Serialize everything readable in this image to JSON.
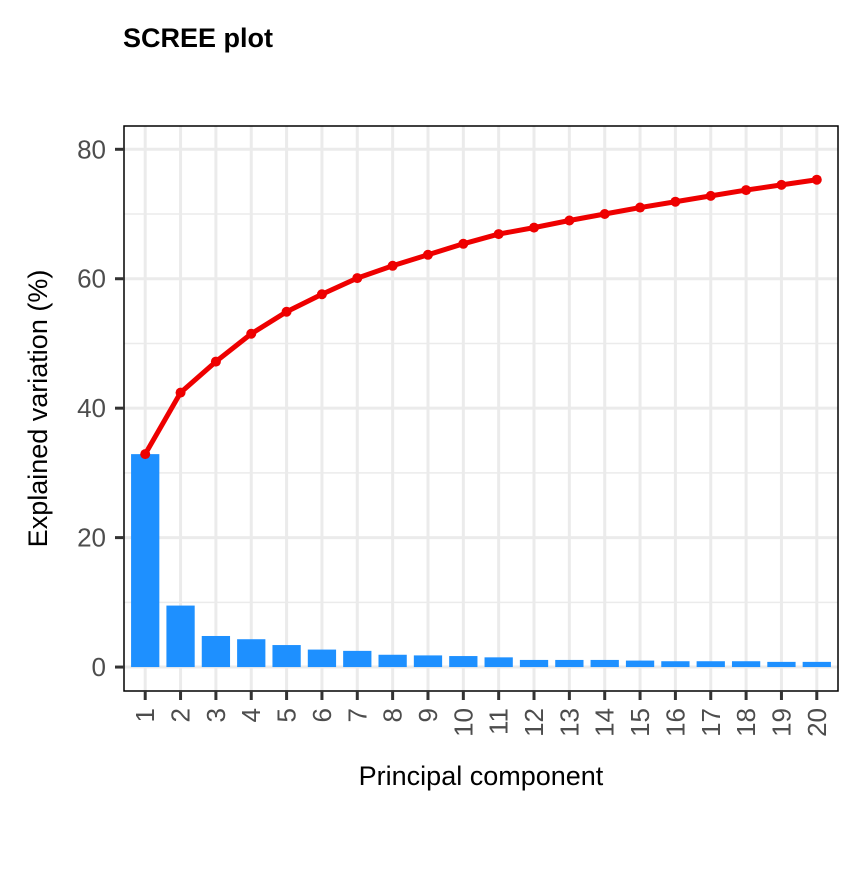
{
  "chart_data": {
    "type": "bar",
    "title": "SCREE plot",
    "xlabel": "Principal component",
    "ylabel": "Explained variation (%)",
    "categories": [
      "1",
      "2",
      "3",
      "4",
      "5",
      "6",
      "7",
      "8",
      "9",
      "10",
      "11",
      "12",
      "13",
      "14",
      "15",
      "16",
      "17",
      "18",
      "19",
      "20"
    ],
    "ylim": [
      -3.7,
      83.6
    ],
    "yticks": [
      0,
      20,
      40,
      60,
      80
    ],
    "grid": true,
    "series": [
      {
        "type": "bar",
        "values": [
          32.9,
          9.5,
          4.8,
          4.3,
          3.4,
          2.7,
          2.5,
          1.9,
          1.8,
          1.7,
          1.5,
          1.1,
          1.1,
          1.1,
          1.0,
          0.9,
          0.9,
          0.9,
          0.8,
          0.8
        ],
        "color": "#1E90FF"
      },
      {
        "type": "line",
        "values": [
          32.9,
          42.4,
          47.2,
          51.5,
          54.9,
          57.6,
          60.1,
          62.0,
          63.7,
          65.4,
          66.9,
          67.9,
          69.0,
          70.0,
          71.0,
          71.9,
          72.8,
          73.7,
          74.5,
          75.3
        ],
        "color": "#EE0000"
      }
    ]
  }
}
